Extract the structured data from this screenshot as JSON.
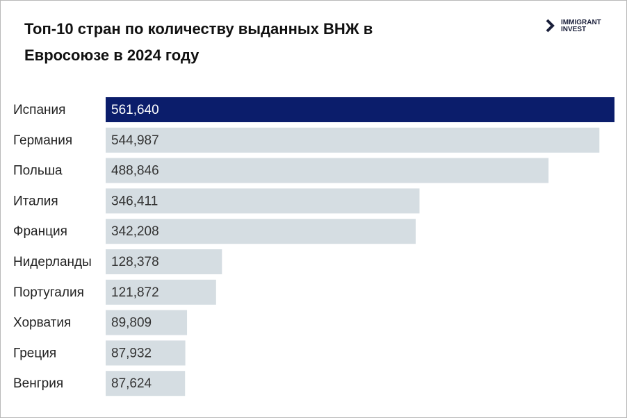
{
  "chart_data": {
    "type": "hbar",
    "title": "Топ-10 стран по количеству выданных ВНЖ в Евросоюзе в 2024 году",
    "logo": [
      "IMMIGRANT",
      "INVEST"
    ],
    "categories": [
      "Испания",
      "Германия",
      "Польша",
      "Италия",
      "Франция",
      "Нидерланды",
      "Португалия",
      "Хорватия",
      "Греция",
      "Венгрия"
    ],
    "values": [
      561640,
      544987,
      488846,
      346411,
      342208,
      128378,
      121872,
      89809,
      87932,
      87624
    ],
    "value_labels": [
      "561,640",
      "544,987",
      "488,846",
      "346,411",
      "342,208",
      "128,378",
      "121,872",
      "89,809",
      "87,932",
      "87,624"
    ],
    "colors": [
      "#0b1d6b",
      "#d5dde2",
      "#d5dde2",
      "#d5dde2",
      "#d5dde2",
      "#d5dde2",
      "#d5dde2",
      "#d5dde2",
      "#d5dde2",
      "#d5dde2"
    ]
  }
}
